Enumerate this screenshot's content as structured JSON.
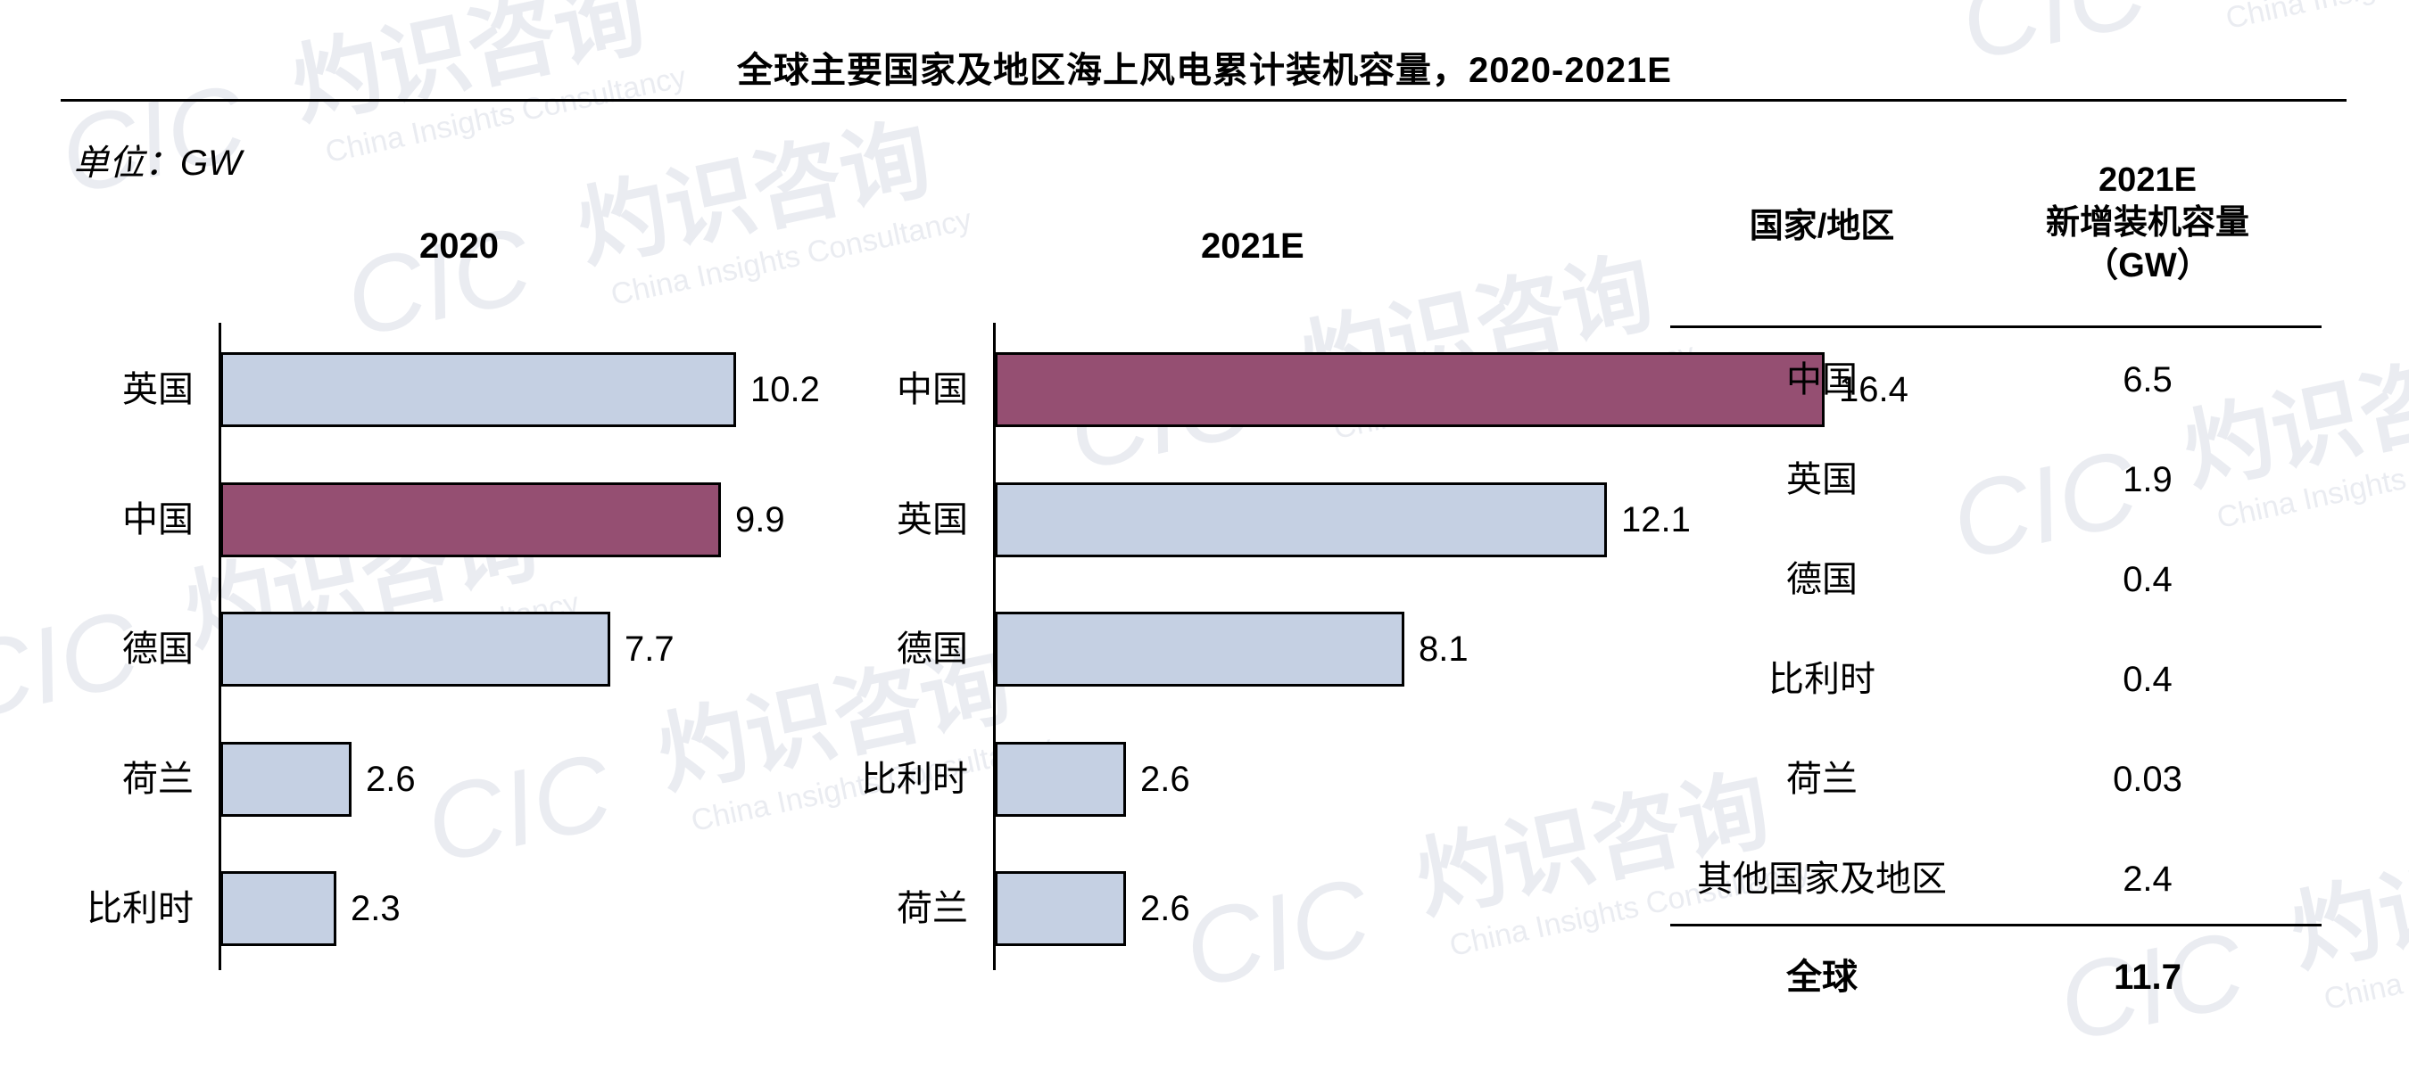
{
  "title": "全球主要国家及地区海上风电累计装机容量，2020-2021E",
  "unit_label": "单位：GW",
  "colors": {
    "china": "#954F72",
    "other": "#C5D0E3",
    "watermark": "#D9DDE6"
  },
  "watermark": {
    "logo": "CIC",
    "brand_cn": "灼识咨询",
    "brand_en": "China Insights Consultancy"
  },
  "chart_data": [
    {
      "type": "bar",
      "orientation": "horizontal",
      "title": "2020",
      "categories": [
        "英国",
        "中国",
        "德国",
        "荷兰",
        "比利时"
      ],
      "values": [
        10.2,
        9.9,
        7.7,
        2.6,
        2.3
      ],
      "value_labels": [
        "10.2",
        "9.9",
        "7.7",
        "2.6",
        "2.3"
      ],
      "highlight": "中国"
    },
    {
      "type": "bar",
      "orientation": "horizontal",
      "title": "2021E",
      "categories": [
        "中国",
        "英国",
        "德国",
        "比利时",
        "荷兰"
      ],
      "values": [
        16.4,
        12.1,
        8.1,
        2.6,
        2.6
      ],
      "value_labels": [
        "16.4",
        "12.1",
        "8.1",
        "2.6",
        "2.6"
      ],
      "highlight": "中国"
    },
    {
      "type": "table",
      "header_country": "国家/地区",
      "header_value_lines": [
        "2021E",
        "新增装机容量",
        "（GW）"
      ],
      "rows": [
        {
          "country": "中国",
          "value": "6.5"
        },
        {
          "country": "英国",
          "value": "1.9"
        },
        {
          "country": "德国",
          "value": "0.4"
        },
        {
          "country": "比利时",
          "value": "0.4"
        },
        {
          "country": "荷兰",
          "value": "0.03"
        },
        {
          "country": "其他国家及地区",
          "value": "2.4"
        }
      ],
      "total": {
        "country": "全球",
        "value": "11.7"
      }
    }
  ]
}
